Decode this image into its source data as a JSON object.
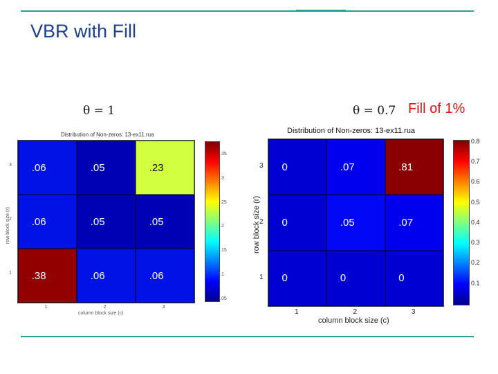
{
  "slide": {
    "title": "VBR with Fill",
    "fill_note": "Fill of 1%",
    "colors": {
      "rule": "#2a9d9d",
      "title": "#1f3f8f",
      "fill_note": "#d21414"
    }
  },
  "chart_data": [
    {
      "type": "heatmap",
      "theta_label": "θ = 1",
      "title": "Distribution of Non-zeros: 13-ex11.rua",
      "xlabel": "column block size (c)",
      "ylabel": "row block size (r)",
      "x_ticks": [
        "1",
        "2",
        "3"
      ],
      "y_ticks": [
        "1",
        "2",
        "3"
      ],
      "cells": [
        {
          "r": 3,
          "c": 1,
          "label": ".06",
          "value": 0.06,
          "color": "#0012e6"
        },
        {
          "r": 3,
          "c": 2,
          "label": ".05",
          "value": 0.05,
          "color": "#0000b5"
        },
        {
          "r": 3,
          "c": 3,
          "label": ".23",
          "value": 0.23,
          "color": "#d2ff40"
        },
        {
          "r": 2,
          "c": 1,
          "label": ".06",
          "value": 0.06,
          "color": "#0012e6"
        },
        {
          "r": 2,
          "c": 2,
          "label": ".05",
          "value": 0.05,
          "color": "#0000b5"
        },
        {
          "r": 2,
          "c": 3,
          "label": ".05",
          "value": 0.05,
          "color": "#0000b5"
        },
        {
          "r": 1,
          "c": 1,
          "label": ".38",
          "value": 0.38,
          "color": "#930000"
        },
        {
          "r": 1,
          "c": 2,
          "label": ".06",
          "value": 0.06,
          "color": "#0012e6"
        },
        {
          "r": 1,
          "c": 3,
          "label": ".06",
          "value": 0.06,
          "color": "#0012e6"
        }
      ],
      "colorbar_ticks": [
        ".35",
        ".3",
        ".25",
        ".2",
        ".15",
        ".1",
        ".05"
      ],
      "colorbar_range": [
        0.05,
        0.38
      ]
    },
    {
      "type": "heatmap",
      "theta_label": "θ = 0.7",
      "title": "Distribution of Non-zeros: 13-ex11.rua",
      "xlabel": "column block size (c)",
      "ylabel": "row block size (r)",
      "x_ticks": [
        "1",
        "2",
        "3"
      ],
      "y_ticks": [
        "1",
        "2",
        "3"
      ],
      "cells": [
        {
          "r": 3,
          "c": 1,
          "label": "0",
          "value": 0,
          "color": "#0000d2"
        },
        {
          "r": 3,
          "c": 2,
          "label": ".07",
          "value": 0.07,
          "color": "#0000ee"
        },
        {
          "r": 3,
          "c": 3,
          "label": ".81",
          "value": 0.81,
          "color": "#8a0000"
        },
        {
          "r": 2,
          "c": 1,
          "label": "0",
          "value": 0,
          "color": "#0000d2"
        },
        {
          "r": 2,
          "c": 2,
          "label": ".05",
          "value": 0.05,
          "color": "#0008f5"
        },
        {
          "r": 2,
          "c": 3,
          "label": ".07",
          "value": 0.07,
          "color": "#0000ee"
        },
        {
          "r": 1,
          "c": 1,
          "label": "0",
          "value": 0,
          "color": "#0000d2"
        },
        {
          "r": 1,
          "c": 2,
          "label": "0",
          "value": 0,
          "color": "#0000d2"
        },
        {
          "r": 1,
          "c": 3,
          "label": "0",
          "value": 0,
          "color": "#0000d2"
        }
      ],
      "colorbar_ticks": [
        "0.8",
        "0.7",
        "0.6",
        "0.5",
        "0.4",
        "0.3",
        "0.2",
        "0.1"
      ],
      "colorbar_range": [
        0,
        0.81
      ]
    }
  ]
}
